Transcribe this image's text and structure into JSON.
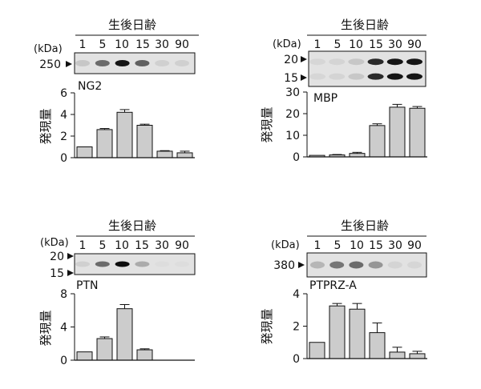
{
  "panels": [
    {
      "header": "生後日齢",
      "kda_label": "(kDa)",
      "lanes": [
        "1",
        "5",
        "10",
        "15",
        "30",
        "90"
      ],
      "markers": [
        "250"
      ],
      "protein": "NG2",
      "ylabel": "発現量",
      "band_intensity": [
        0.12,
        0.55,
        0.95,
        0.6,
        0.08,
        0.08
      ]
    },
    {
      "header": "生後日齢",
      "kda_label": "(kDa)",
      "lanes": [
        "1",
        "5",
        "10",
        "15",
        "30",
        "90"
      ],
      "markers": [
        "20",
        "15"
      ],
      "protein": "MBP",
      "ylabel": "発現量",
      "band_intensity": [
        0.05,
        0.06,
        0.12,
        0.85,
        0.95,
        0.95
      ]
    },
    {
      "header": "生後日齢",
      "kda_label": "(kDa)",
      "lanes": [
        "1",
        "5",
        "10",
        "15",
        "30",
        "90"
      ],
      "markers": [
        "20",
        "15"
      ],
      "protein": "PTN",
      "ylabel": "発現量",
      "band_intensity": [
        0.08,
        0.55,
        0.98,
        0.25,
        0.02,
        0.02
      ]
    },
    {
      "header": "生後日齢",
      "kda_label": "(kDa)",
      "lanes": [
        "1",
        "5",
        "10",
        "15",
        "30",
        "90"
      ],
      "markers": [
        "380"
      ],
      "protein": "PTPRZ-A",
      "ylabel": "発現量",
      "band_intensity": [
        0.2,
        0.5,
        0.55,
        0.35,
        0.06,
        0.05
      ]
    }
  ],
  "chart_data": [
    {
      "type": "bar",
      "title": "",
      "xlabel": "",
      "ylabel": "発現量",
      "categories": [
        "1",
        "5",
        "10",
        "15",
        "30",
        "90"
      ],
      "values": [
        1.0,
        2.6,
        4.2,
        3.0,
        0.6,
        0.45
      ],
      "errors": [
        0,
        0.1,
        0.25,
        0.1,
        0.05,
        0.15
      ],
      "ylim": [
        0,
        6
      ],
      "yticks": [
        0,
        2,
        4,
        6
      ],
      "grid": false
    },
    {
      "type": "bar",
      "title": "",
      "xlabel": "",
      "ylabel": "発現量",
      "categories": [
        "1",
        "5",
        "10",
        "15",
        "30",
        "90"
      ],
      "values": [
        0.7,
        0.9,
        1.6,
        14.5,
        23.0,
        22.5
      ],
      "errors": [
        0,
        0.2,
        0.5,
        0.8,
        1.3,
        0.8
      ],
      "ylim": [
        0,
        30
      ],
      "yticks": [
        0,
        10,
        20,
        30
      ],
      "grid": false
    },
    {
      "type": "bar",
      "title": "",
      "xlabel": "",
      "ylabel": "発現量",
      "categories": [
        "1",
        "5",
        "10",
        "15",
        "30",
        "90"
      ],
      "values": [
        1.0,
        2.6,
        6.2,
        1.25,
        0,
        0
      ],
      "errors": [
        0,
        0.2,
        0.5,
        0.12,
        0,
        0
      ],
      "ylim": [
        0,
        8
      ],
      "yticks": [
        0,
        4,
        8
      ],
      "grid": false
    },
    {
      "type": "bar",
      "title": "",
      "xlabel": "",
      "ylabel": "発現量",
      "categories": [
        "1",
        "5",
        "10",
        "15",
        "30",
        "90"
      ],
      "values": [
        1.0,
        3.25,
        3.05,
        1.6,
        0.4,
        0.3
      ],
      "errors": [
        0,
        0.15,
        0.35,
        0.6,
        0.3,
        0.15
      ],
      "ylim": [
        0,
        4
      ],
      "yticks": [
        0,
        2,
        4
      ],
      "grid": false
    }
  ]
}
